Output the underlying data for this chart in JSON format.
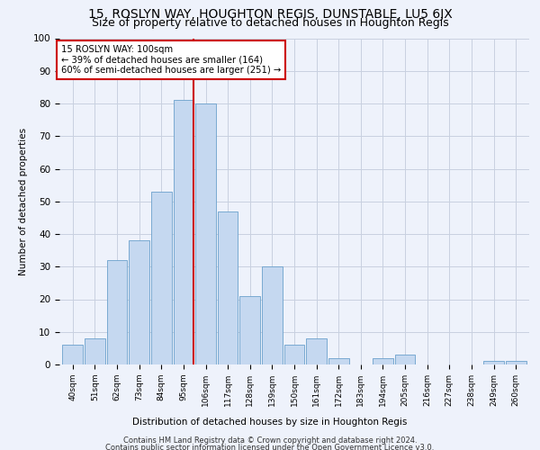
{
  "title": "15, ROSLYN WAY, HOUGHTON REGIS, DUNSTABLE, LU5 6JX",
  "subtitle": "Size of property relative to detached houses in Houghton Regis",
  "xlabel": "Distribution of detached houses by size in Houghton Regis",
  "ylabel": "Number of detached properties",
  "footer_line1": "Contains HM Land Registry data © Crown copyright and database right 2024.",
  "footer_line2": "Contains public sector information licensed under the Open Government Licence v3.0.",
  "categories": [
    "40sqm",
    "51sqm",
    "62sqm",
    "73sqm",
    "84sqm",
    "95sqm",
    "106sqm",
    "117sqm",
    "128sqm",
    "139sqm",
    "150sqm",
    "161sqm",
    "172sqm",
    "183sqm",
    "194sqm",
    "205sqm",
    "216sqm",
    "227sqm",
    "238sqm",
    "249sqm",
    "260sqm"
  ],
  "values": [
    6,
    8,
    32,
    38,
    53,
    81,
    80,
    47,
    21,
    30,
    6,
    8,
    2,
    0,
    2,
    3,
    0,
    0,
    0,
    1,
    1
  ],
  "bar_color": "#c5d8f0",
  "bar_edge_color": "#6aa0cc",
  "red_line_index": 5,
  "annotation_text": "15 ROSLYN WAY: 100sqm\n← 39% of detached houses are smaller (164)\n60% of semi-detached houses are larger (251) →",
  "annotation_box_color": "#ffffff",
  "annotation_box_edge": "#cc0000",
  "vline_color": "#cc0000",
  "background_color": "#eef2fb",
  "grid_color": "#c8d0e0",
  "ylim": [
    0,
    100
  ],
  "yticks": [
    0,
    10,
    20,
    30,
    40,
    50,
    60,
    70,
    80,
    90,
    100
  ],
  "title_fontsize": 10,
  "subtitle_fontsize": 9,
  "bar_width": 0.92
}
